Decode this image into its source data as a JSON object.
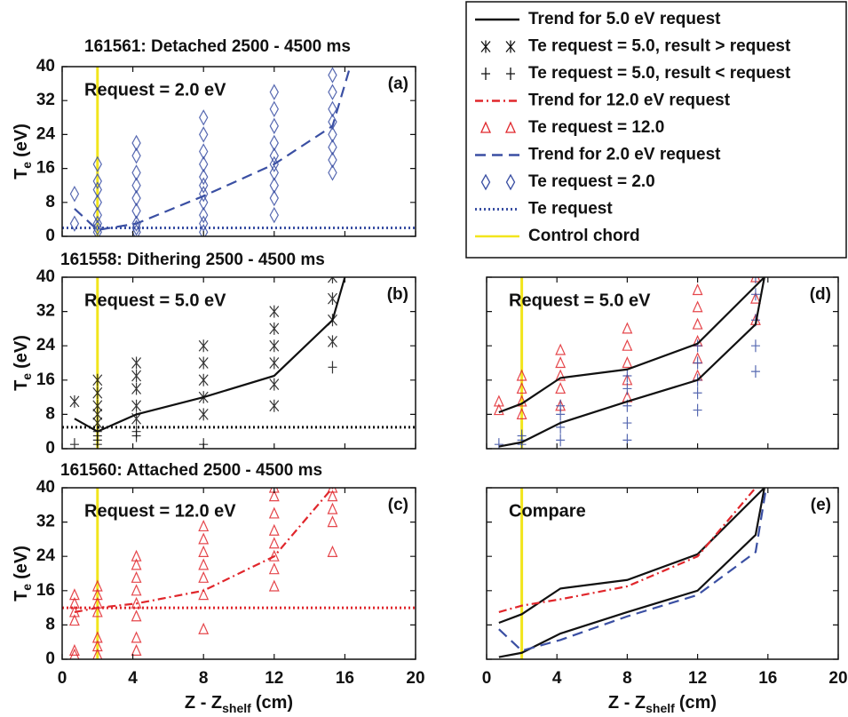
{
  "legend": [
    {
      "label": "Trend for 5.0 eV request",
      "color": "#111111",
      "style": "solid"
    },
    {
      "label": "Te request = 5.0, result > request",
      "color": "#111111",
      "style": "star"
    },
    {
      "label": "Te request = 5.0, result < request",
      "color": "#111111",
      "style": "plus"
    },
    {
      "label": "Trend for 12.0 eV request",
      "color": "#e0262b",
      "style": "dashdot"
    },
    {
      "label": "Te request = 12.0",
      "color": "#e0262b",
      "style": "triangle"
    },
    {
      "label": "Trend for 2.0 eV request",
      "color": "#3a4fa3",
      "style": "dashed"
    },
    {
      "label": "Te request = 2.0",
      "color": "#3a4fa3",
      "style": "diamond"
    },
    {
      "label": "Te request",
      "color": "#3a4fa3",
      "style": "dotted"
    },
    {
      "label": "Control chord",
      "color": "#f2e51c",
      "style": "solid"
    }
  ],
  "chart_data": [
    {
      "type": "scatter",
      "label": "(a)",
      "title": "161561: Detached 2500 - 4500 ms",
      "annotation": "Request = 2.0 eV",
      "ylabel": {
        "main": "T",
        "sub": "e",
        "unit": "(eV)"
      },
      "xlim": [
        0,
        20
      ],
      "ylim": [
        0,
        40
      ],
      "xticks": [
        0,
        4,
        8,
        12,
        16,
        20
      ],
      "yticks": [
        0,
        8,
        16,
        24,
        32,
        40
      ],
      "show_xticklabels": false,
      "show_yticklabels": true,
      "control_chord_x": 2,
      "control_chord_color": "#f2e51c",
      "request": 2,
      "request_color": "#3a4fa3",
      "series": [
        {
          "color": "#3a4fa3",
          "style": "diamond",
          "x": [
            0.7,
            0.7,
            2,
            2,
            2,
            2,
            2,
            2,
            2,
            2,
            4.2,
            4.2,
            4.2,
            4.2,
            4.2,
            4.2,
            4.2,
            4.2,
            4.2,
            8,
            8,
            8,
            8,
            8,
            8,
            8,
            8,
            8,
            8,
            8,
            12,
            12,
            12,
            12,
            12,
            12,
            12,
            12,
            12,
            12,
            15.3,
            15.3,
            15.3,
            15.3,
            15.3,
            15.3,
            15.3,
            15.3
          ],
          "values": [
            10,
            3,
            1,
            2,
            3,
            5,
            8,
            11,
            13,
            17,
            1,
            2,
            3,
            6,
            9,
            12,
            15,
            19,
            22,
            1,
            3,
            5,
            8,
            10,
            12,
            14,
            17,
            20,
            24,
            28,
            5,
            9,
            12,
            15,
            17,
            19,
            22,
            26,
            30,
            34,
            15,
            18,
            21,
            24,
            27,
            30,
            34,
            38
          ]
        },
        {
          "color": "#3a4fa3",
          "style": "dashed",
          "x": [
            0.7,
            2,
            4.2,
            8,
            12,
            15.3,
            16.3
          ],
          "values": [
            6.5,
            1.5,
            3,
            9.5,
            17,
            26,
            40
          ]
        }
      ]
    },
    {
      "type": "scatter",
      "label": "(b)",
      "title": "161558: Dithering 2500 - 4500 ms",
      "annotation": "Request = 5.0 eV",
      "ylabel": {
        "main": "T",
        "sub": "e",
        "unit": "(eV)"
      },
      "xlim": [
        0,
        20
      ],
      "ylim": [
        0,
        40
      ],
      "xticks": [
        0,
        4,
        8,
        12,
        16,
        20
      ],
      "yticks": [
        0,
        8,
        16,
        24,
        32,
        40
      ],
      "show_xticklabels": false,
      "show_yticklabels": true,
      "control_chord_x": 2,
      "control_chord_color": "#f2e51c",
      "request": 5,
      "request_color": "#111111",
      "series": [
        {
          "color": "#111111",
          "style": "star",
          "x": [
            0.7,
            2,
            2,
            2,
            2,
            2,
            4.2,
            4.2,
            4.2,
            4.2,
            4.2,
            8,
            8,
            8,
            8,
            8,
            12,
            12,
            12,
            12,
            12,
            12,
            15.3,
            15.3,
            15.3,
            15.3
          ],
          "values": [
            11,
            6,
            8,
            10,
            13,
            16,
            7,
            10,
            14,
            17,
            20,
            8,
            12,
            16,
            20,
            24,
            10,
            15,
            20,
            24,
            28,
            32,
            25,
            30,
            35,
            40
          ]
        },
        {
          "color": "#111111",
          "style": "plus",
          "x": [
            0.7,
            2,
            2,
            2,
            2,
            4.2,
            4.2,
            8,
            15.3
          ],
          "values": [
            1,
            1,
            2,
            3,
            4,
            3,
            4,
            1,
            19
          ]
        },
        {
          "color": "#111111",
          "style": "solid",
          "x": [
            0.7,
            2,
            4.2,
            8,
            12,
            15.3,
            16
          ],
          "values": [
            7,
            4,
            8,
            12,
            17,
            30,
            40
          ]
        }
      ]
    },
    {
      "type": "scatter",
      "label": "(c)",
      "title": "161560: Attached 2500 - 4500 ms",
      "annotation": "Request = 12.0 eV",
      "ylabel": {
        "main": "T",
        "sub": "e",
        "unit": "(eV)"
      },
      "xlabel": {
        "main": "Z - Z",
        "sub": "shelf",
        "unit": "(cm)"
      },
      "xlim": [
        0,
        20
      ],
      "ylim": [
        0,
        40
      ],
      "xticks": [
        0,
        4,
        8,
        12,
        16,
        20
      ],
      "yticks": [
        0,
        8,
        16,
        24,
        32,
        40
      ],
      "show_xticklabels": true,
      "show_yticklabels": true,
      "control_chord_x": 2,
      "control_chord_color": "#f2e51c",
      "request": 12,
      "request_color": "#e0262b",
      "series": [
        {
          "color": "#e0262b",
          "style": "triangle",
          "x": [
            0.7,
            0.7,
            0.7,
            0.7,
            0.7,
            0.7,
            2,
            2,
            2,
            2,
            2,
            2,
            2,
            4.2,
            4.2,
            4.2,
            4.2,
            4.2,
            4.2,
            4.2,
            4.2,
            8,
            8,
            8,
            8,
            8,
            8,
            8,
            12,
            12,
            12,
            12,
            12,
            12,
            12,
            12,
            15.3,
            15.3,
            15.3,
            15.3,
            15.3
          ],
          "values": [
            1,
            2,
            9,
            11,
            13,
            15,
            1,
            3,
            5,
            11,
            13,
            15,
            17,
            2,
            5,
            10,
            13,
            16,
            19,
            22,
            24,
            7,
            15,
            19,
            22,
            25,
            28,
            31,
            17,
            21,
            24,
            27,
            30,
            34,
            38,
            40,
            25,
            32,
            35,
            38,
            40
          ]
        },
        {
          "color": "#e0262b",
          "style": "dashdot",
          "x": [
            0.7,
            2,
            4.2,
            8,
            12,
            15.3
          ],
          "values": [
            11,
            12,
            13,
            16,
            24,
            40
          ]
        }
      ]
    },
    {
      "type": "scatter",
      "label": "(d)",
      "annotation": "Request = 5.0 eV",
      "xlim": [
        0,
        20
      ],
      "ylim": [
        0,
        40
      ],
      "xticks": [
        0,
        4,
        8,
        12,
        16,
        20
      ],
      "yticks": [
        0,
        8,
        16,
        24,
        32,
        40
      ],
      "show_xticklabels": false,
      "show_yticklabels": false,
      "control_chord_x": 2,
      "control_chord_color": "#f2e51c",
      "series": [
        {
          "color": "#e0262b",
          "style": "triangle",
          "x": [
            0.7,
            0.7,
            2,
            2,
            2,
            2,
            4.2,
            4.2,
            4.2,
            4.2,
            4.2,
            8,
            8,
            8,
            8,
            8,
            12,
            12,
            12,
            12,
            12,
            12,
            15.3,
            15.3,
            15.3
          ],
          "values": [
            11,
            9,
            8,
            11,
            14,
            17,
            10,
            14,
            17,
            20,
            23,
            12,
            16,
            20,
            24,
            28,
            17,
            21,
            25,
            29,
            33,
            37,
            30,
            35,
            40
          ]
        },
        {
          "color": "#3a4fa3",
          "style": "plus",
          "x": [
            0.7,
            2,
            2,
            2,
            4.2,
            4.2,
            4.2,
            4.2,
            8,
            8,
            8,
            8,
            8,
            12,
            12,
            12,
            12,
            12,
            15.3,
            15.3,
            15.3,
            15.3,
            15.3
          ],
          "values": [
            1,
            1,
            2,
            3,
            2,
            5,
            8,
            10,
            2,
            6,
            10,
            14,
            17,
            9,
            13,
            16,
            20,
            24,
            18,
            24,
            30,
            36,
            40
          ]
        },
        {
          "color": "#111111",
          "style": "solid",
          "x": [
            0.7,
            2,
            4.2,
            8,
            12,
            15.8
          ],
          "values": [
            8.5,
            10.5,
            16.5,
            18.5,
            24.5,
            40
          ]
        },
        {
          "color": "#111111",
          "style": "solid",
          "x": [
            0.7,
            2,
            4.2,
            8,
            12,
            15.3,
            15.8
          ],
          "values": [
            0.5,
            1.5,
            6,
            11,
            16,
            29,
            40
          ]
        }
      ]
    },
    {
      "type": "scatter",
      "label": "(e)",
      "annotation": "Compare",
      "xlabel": {
        "main": "Z - Z",
        "sub": "shelf",
        "unit": "(cm)"
      },
      "xlim": [
        0,
        20
      ],
      "ylim": [
        0,
        40
      ],
      "xticks": [
        0,
        4,
        8,
        12,
        16,
        20
      ],
      "yticks": [
        0,
        8,
        16,
        24,
        32,
        40
      ],
      "show_xticklabels": true,
      "show_yticklabels": false,
      "control_chord_x": 2,
      "control_chord_color": "#f2e51c",
      "series": [
        {
          "color": "#111111",
          "style": "solid",
          "x": [
            0.7,
            2,
            4.2,
            8,
            12,
            15.8
          ],
          "values": [
            8.5,
            10.5,
            16.5,
            18.5,
            24.5,
            40
          ]
        },
        {
          "color": "#111111",
          "style": "solid",
          "x": [
            0.7,
            2,
            4.2,
            8,
            12,
            15.3,
            15.8
          ],
          "values": [
            0.5,
            1.5,
            6,
            11,
            16,
            29,
            40
          ]
        },
        {
          "color": "#e0262b",
          "style": "dashdot",
          "x": [
            0.7,
            2,
            4.2,
            8,
            12,
            15.3
          ],
          "values": [
            11,
            12.5,
            14,
            17,
            24,
            40
          ]
        },
        {
          "color": "#3a4fa3",
          "style": "dashed",
          "x": [
            0.7,
            2,
            4.2,
            8,
            12,
            15.3,
            15.9
          ],
          "values": [
            7,
            2,
            4.5,
            10,
            15,
            25,
            40
          ]
        }
      ]
    }
  ]
}
